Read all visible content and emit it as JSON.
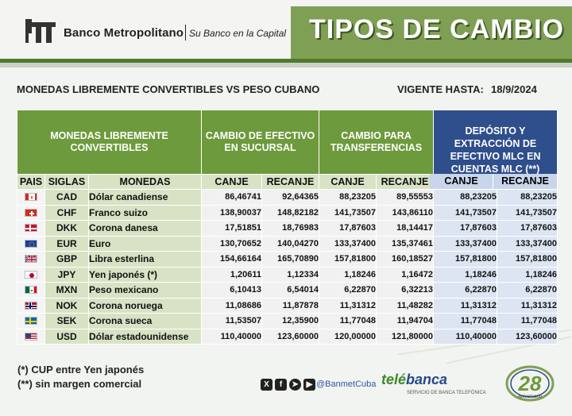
{
  "header": {
    "bank_name": "Banco Metropolitano",
    "slogan": "Su Banco en la Capital",
    "title": "TIPOS DE CAMBIO"
  },
  "subheader": {
    "left": "MONEDAS LIBREMENTE CONVERTIBLES VS PESO CUBANO",
    "valid_label": "VIGENTE HASTA:",
    "valid_date": "18/9/2024"
  },
  "table": {
    "group_headers": {
      "currencies": "MONEDAS LIBREMENTE CONVERTIBLES",
      "cash": "CAMBIO DE EFECTIVO EN SUCURSAL",
      "transfers": "CAMBIO PARA TRANSFERENCIAS",
      "mlc": "DEPÓSITO Y EXTRACCIÓN DE EFECTIVO MLC EN CUENTAS MLC (**)"
    },
    "columns": {
      "pais": "PAIS",
      "siglas": "SIGLAS",
      "monedas": "MONEDAS",
      "canje": "CANJE",
      "recanje": "RECANJE"
    },
    "rows": [
      {
        "flag": "canada-flag",
        "code": "CAD",
        "name": "Dólar canadiense",
        "cash_canje": "86,46741",
        "cash_recanje": "92,64365",
        "tr_canje": "88,23205",
        "tr_recanje": "89,55553",
        "mlc_canje": "88,23205",
        "mlc_recanje": "88,23205"
      },
      {
        "flag": "switzerland-flag",
        "code": "CHF",
        "name": "Franco suizo",
        "cash_canje": "138,90037",
        "cash_recanje": "148,82182",
        "tr_canje": "141,73507",
        "tr_recanje": "143,86110",
        "mlc_canje": "141,73507",
        "mlc_recanje": "141,73507"
      },
      {
        "flag": "denmark-flag",
        "code": "DKK",
        "name": "Corona danesa",
        "cash_canje": "17,51851",
        "cash_recanje": "18,76983",
        "tr_canje": "17,87603",
        "tr_recanje": "18,14417",
        "mlc_canje": "17,87603",
        "mlc_recanje": "17,87603"
      },
      {
        "flag": "eu-flag",
        "code": "EUR",
        "name": "Euro",
        "cash_canje": "130,70652",
        "cash_recanje": "140,04270",
        "tr_canje": "133,37400",
        "tr_recanje": "135,37461",
        "mlc_canje": "133,37400",
        "mlc_recanje": "133,37400"
      },
      {
        "flag": "uk-flag",
        "code": "GBP",
        "name": "Libra esterlina",
        "cash_canje": "154,66164",
        "cash_recanje": "165,70890",
        "tr_canje": "157,81800",
        "tr_recanje": "160,18527",
        "mlc_canje": "157,81800",
        "mlc_recanje": "157,81800"
      },
      {
        "flag": "japan-flag",
        "code": "JPY",
        "name": "Yen japonés (*)",
        "cash_canje": "1,20611",
        "cash_recanje": "1,12334",
        "tr_canje": "1,18246",
        "tr_recanje": "1,16472",
        "mlc_canje": "1,18246",
        "mlc_recanje": "1,18246"
      },
      {
        "flag": "mexico-flag",
        "code": "MXN",
        "name": "Peso mexicano",
        "cash_canje": "6,10413",
        "cash_recanje": "6,54014",
        "tr_canje": "6,22870",
        "tr_recanje": "6,32213",
        "mlc_canje": "6,22870",
        "mlc_recanje": "6,22870"
      },
      {
        "flag": "norway-flag",
        "code": "NOK",
        "name": "Corona noruega",
        "cash_canje": "11,08686",
        "cash_recanje": "11,87878",
        "tr_canje": "11,31312",
        "tr_recanje": "11,48282",
        "mlc_canje": "11,31312",
        "mlc_recanje": "11,31312"
      },
      {
        "flag": "sweden-flag",
        "code": "SEK",
        "name": "Corona sueca",
        "cash_canje": "11,53507",
        "cash_recanje": "12,35900",
        "tr_canje": "11,77048",
        "tr_recanje": "11,94704",
        "mlc_canje": "11,77048",
        "mlc_recanje": "11,77048"
      },
      {
        "flag": "usa-flag",
        "code": "USD",
        "name": "Dólar estadounidense",
        "cash_canje": "110,40000",
        "cash_recanje": "123,60000",
        "tr_canje": "120,00000",
        "tr_recanje": "121,80000",
        "mlc_canje": "110,40000",
        "mlc_recanje": "123,60000"
      }
    ]
  },
  "footnotes": {
    "note1": "(*) CUP entre Yen japonés",
    "note2": "(**) sin margen comercial"
  },
  "footer": {
    "social_handle": "@BanmetCuba",
    "telebanca_1": "telé",
    "telebanca_2": "banca",
    "telebanca_sub": "SERVICIO DE BANCA TELEFÓNICA",
    "anniversary_number": "28",
    "anniversary_label": "Aniversario"
  },
  "colors": {
    "green": "#6d9a3c",
    "dark_green": "#4e7a2a",
    "blue": "#2f4e8c",
    "light_green": "#d7e3c4"
  }
}
